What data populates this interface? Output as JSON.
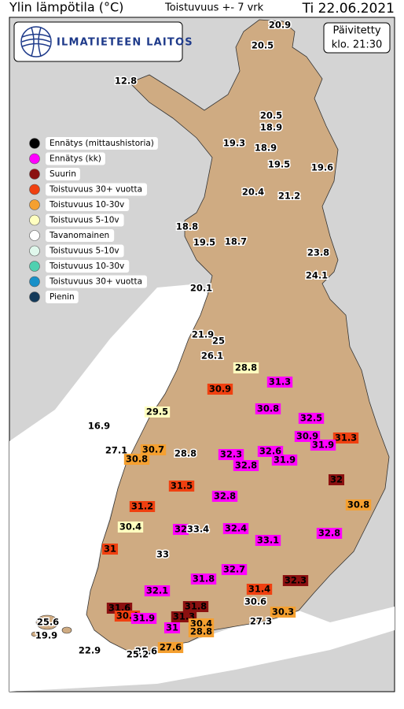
{
  "header": {
    "title": "Ylin lämpötila (°C)",
    "subtitle": "Toistuvuus +- 7 vrk",
    "date": "Ti 22.06.2021"
  },
  "logo": {
    "text": "ILMATIETEEN LAITOS"
  },
  "updated": {
    "line1": "Päivitetty",
    "line2": "klo. 21:30"
  },
  "legend": [
    {
      "name": "Ennätys (mittaushistoria)",
      "color": "#000000"
    },
    {
      "name": "Ennätys (kk)",
      "color": "#ff00ff"
    },
    {
      "name": "Suurin",
      "color": "#8b1010"
    },
    {
      "name": "Toistuvuus 30+ vuotta",
      "color": "#f04010"
    },
    {
      "name": "Toistuvuus 10-30v",
      "color": "#f5a030"
    },
    {
      "name": "Toistuvuus 5-10v",
      "color": "#ffffc0"
    },
    {
      "name": "Tavanomainen",
      "color": "#ffffff"
    },
    {
      "name": "Toistuvuus 5-10v",
      "color": "#e0f8ec"
    },
    {
      "name": "Toistuvuus 10-30v",
      "color": "#50d0b0"
    },
    {
      "name": "Toistuvuus 30+ vuotta",
      "color": "#1890c8"
    },
    {
      "name": "Pienin",
      "color": "#143a5a"
    }
  ],
  "stations": [
    {
      "value": 20.9,
      "color": "#ffffff"
    },
    {
      "value": 20.5,
      "color": "#ffffff"
    },
    {
      "value": 12.8,
      "color": "#ffffff"
    },
    {
      "value": 20.5,
      "color": "#ffffff"
    },
    {
      "value": 18.9,
      "color": "#ffffff"
    },
    {
      "value": 19.3,
      "color": "#ffffff"
    },
    {
      "value": 18.9,
      "color": "#ffffff"
    },
    {
      "value": 19.5,
      "color": "#ffffff"
    },
    {
      "value": 19.6,
      "color": "#ffffff"
    },
    {
      "value": 20.4,
      "color": "#ffffff"
    },
    {
      "value": 21.2,
      "color": "#ffffff"
    },
    {
      "value": 18.8,
      "color": "#ffffff"
    },
    {
      "value": 19.5,
      "color": "#ffffff"
    },
    {
      "value": 18.7,
      "color": "#ffffff"
    },
    {
      "value": 23.8,
      "color": "#ffffff"
    },
    {
      "value": 24.1,
      "color": "#ffffff"
    },
    {
      "value": 20.1,
      "color": "#ffffff"
    },
    {
      "value": 21.9,
      "color": "#ffffff"
    },
    {
      "value": 25,
      "color": "#ffffff"
    },
    {
      "value": 26.1,
      "color": "#ffffff"
    },
    {
      "value": 28.8,
      "color": "#ffffc0"
    },
    {
      "value": 31.3,
      "color": "#ff00ff"
    },
    {
      "value": 30.9,
      "color": "#f04010"
    },
    {
      "value": 30.8,
      "color": "#ff00ff"
    },
    {
      "value": 29.5,
      "color": "#ffffc0"
    },
    {
      "value": 32.5,
      "color": "#ff00ff"
    },
    {
      "value": 16.9,
      "color": "#ffffff"
    },
    {
      "value": 30.9,
      "color": "#ff00ff"
    },
    {
      "value": 31.3,
      "color": "#f04010"
    },
    {
      "value": 31.9,
      "color": "#ff00ff"
    },
    {
      "value": 27.1,
      "color": "#ffffff"
    },
    {
      "value": 30.7,
      "color": "#f5a030"
    },
    {
      "value": 32.3,
      "color": "#ff00ff"
    },
    {
      "value": 32.6,
      "color": "#ff00ff"
    },
    {
      "value": 30.8,
      "color": "#f5a030"
    },
    {
      "value": 28.8,
      "color": "#ffffff"
    },
    {
      "value": 31.9,
      "color": "#ff00ff"
    },
    {
      "value": 32.8,
      "color": "#ff00ff"
    },
    {
      "value": 32,
      "color": "#8b1010"
    },
    {
      "value": 31.5,
      "color": "#f04010"
    },
    {
      "value": 32.8,
      "color": "#ff00ff"
    },
    {
      "value": 31.2,
      "color": "#f04010"
    },
    {
      "value": 30.8,
      "color": "#f5a030"
    },
    {
      "value": 30.4,
      "color": "#ffffc0"
    },
    {
      "value": 32,
      "color": "#ff00ff"
    },
    {
      "value": 33.4,
      "color": "#ffffff"
    },
    {
      "value": 32.4,
      "color": "#ff00ff"
    },
    {
      "value": 32.8,
      "color": "#ff00ff"
    },
    {
      "value": 33.1,
      "color": "#ff00ff"
    },
    {
      "value": 31,
      "color": "#f04010"
    },
    {
      "value": 33,
      "color": "#ffffff"
    },
    {
      "value": 32.7,
      "color": "#ff00ff"
    },
    {
      "value": 31.8,
      "color": "#ff00ff"
    },
    {
      "value": 32.3,
      "color": "#8b1010"
    },
    {
      "value": 31.4,
      "color": "#f04010"
    },
    {
      "value": 32.1,
      "color": "#ff00ff"
    },
    {
      "value": 30.6,
      "color": "#ffffff"
    },
    {
      "value": 31.6,
      "color": "#8b1010"
    },
    {
      "value": 31.8,
      "color": "#8b1010"
    },
    {
      "value": 30.3,
      "color": "#f5a030"
    },
    {
      "value": 30.4,
      "color": "#f04010"
    },
    {
      "value": 31.9,
      "color": "#ff00ff"
    },
    {
      "value": 31.3,
      "color": "#8b1010"
    },
    {
      "value": 25.6,
      "color": "#ffffff"
    },
    {
      "value": 30.4,
      "color": "#f5a030"
    },
    {
      "value": 27.3,
      "color": "#ffffff"
    },
    {
      "value": 31,
      "color": "#ff00ff"
    },
    {
      "value": 28.8,
      "color": "#f5a030"
    },
    {
      "value": 19.9,
      "color": "#ffffff"
    },
    {
      "value": 22.9,
      "color": "#ffffff"
    },
    {
      "value": 25.6,
      "color": "#ffffff"
    },
    {
      "value": 27.6,
      "color": "#f5a030"
    },
    {
      "value": 25.2,
      "color": "#ffffff"
    }
  ]
}
